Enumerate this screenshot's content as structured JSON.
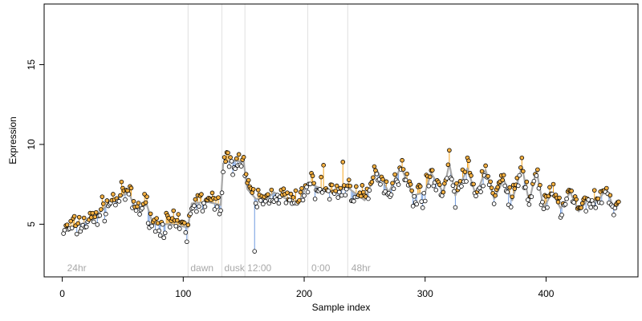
{
  "chart_data": {
    "type": "scatter",
    "title": "",
    "xlabel": "Sample index",
    "ylabel": "Expression",
    "xlim": [
      -15,
      476
    ],
    "ylim": [
      1.7,
      18.8
    ],
    "xticks": [
      0,
      100,
      200,
      300,
      400
    ],
    "yticks": [
      5,
      10,
      15
    ],
    "grid": false,
    "legend": "none",
    "period_labels": [
      {
        "x": 2,
        "label": "24hr"
      },
      {
        "x": 104,
        "label": "dawn"
      },
      {
        "x": 132,
        "label": "dusk"
      },
      {
        "x": 151,
        "label": "12:00"
      },
      {
        "x": 204,
        "label": "0:00"
      },
      {
        "x": 237,
        "label": "48hr"
      }
    ],
    "separators": [
      104,
      132,
      151,
      203,
      236
    ],
    "colors": {
      "fit_line": "#a8a8a8",
      "residual_positive": "#f5a623",
      "residual_negative": "#6f9be0",
      "point_fill_above": "#f5b041",
      "point_fill_below": "#ffffff",
      "separator": "#e0e0e0"
    },
    "fit_points": [
      [
        0,
        4.6
      ],
      [
        12,
        4.9
      ],
      [
        25,
        5.3
      ],
      [
        40,
        6.4
      ],
      [
        55,
        7.0
      ],
      [
        60,
        6.0
      ],
      [
        70,
        6.2
      ],
      [
        75,
        5.0
      ],
      [
        90,
        5.0
      ],
      [
        104,
        4.8
      ],
      [
        107,
        6.3
      ],
      [
        120,
        6.4
      ],
      [
        131,
        6.2
      ],
      [
        133,
        8.8
      ],
      [
        140,
        9.0
      ],
      [
        150,
        8.9
      ],
      [
        153,
        7.2
      ],
      [
        160,
        6.6
      ],
      [
        168,
        6.5
      ],
      [
        175,
        7.0
      ],
      [
        185,
        6.6
      ],
      [
        195,
        6.3
      ],
      [
        203,
        7.6
      ],
      [
        215,
        7.2
      ],
      [
        225,
        7.0
      ],
      [
        236,
        7.3
      ],
      [
        250,
        6.5
      ],
      [
        260,
        8.4
      ],
      [
        270,
        7.0
      ],
      [
        280,
        8.6
      ],
      [
        290,
        6.8
      ],
      [
        300,
        7.0
      ],
      [
        305,
        8.2
      ],
      [
        315,
        7.0
      ],
      [
        320,
        8.8
      ],
      [
        325,
        6.8
      ],
      [
        335,
        8.5
      ],
      [
        342,
        6.8
      ],
      [
        350,
        8.4
      ],
      [
        357,
        6.6
      ],
      [
        365,
        7.8
      ],
      [
        372,
        6.5
      ],
      [
        380,
        8.6
      ],
      [
        386,
        6.4
      ],
      [
        392,
        8.4
      ],
      [
        398,
        6.0
      ],
      [
        405,
        7.0
      ],
      [
        412,
        6.0
      ],
      [
        420,
        7.0
      ],
      [
        427,
        5.8
      ],
      [
        435,
        6.6
      ],
      [
        442,
        6.4
      ],
      [
        450,
        7.2
      ],
      [
        456,
        6.0
      ],
      [
        460,
        6.2
      ]
    ],
    "outliers": [
      [
        159,
        3.3
      ],
      [
        103,
        3.9
      ],
      [
        216,
        8.7
      ],
      [
        232,
        8.9
      ],
      [
        253,
        6.6
      ]
    ],
    "noise_amplitude": 0.45
  }
}
